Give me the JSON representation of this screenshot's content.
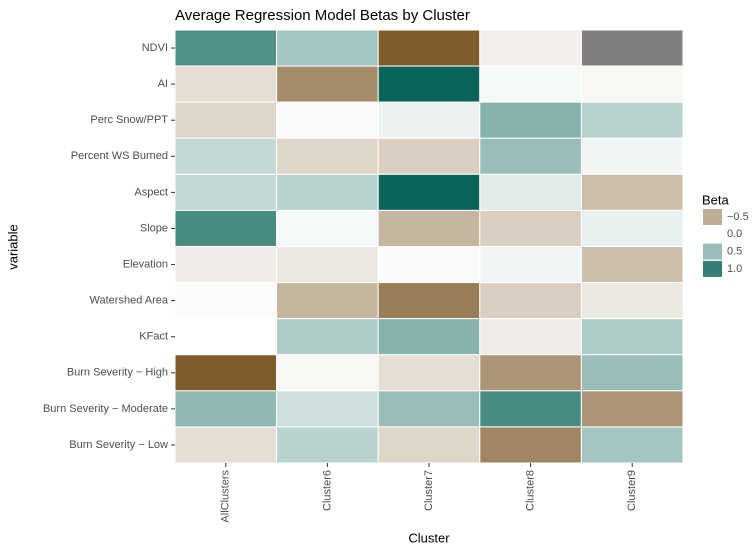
{
  "chart_data": {
    "type": "heatmap",
    "title": "Average Regression Model Betas by Cluster",
    "x_label": "Cluster",
    "y_label": "variable",
    "x_categories": [
      "AllClusters",
      "Cluster6",
      "Cluster7",
      "Cluster8",
      "Cluster9"
    ],
    "y_categories": [
      "NDVI",
      "AI",
      "Perc Snow/PPT",
      "Percent WS Burned",
      "Aspect",
      "Slope",
      "Elevation",
      "Watershed Area",
      "KFact",
      "Burn Severity − High",
      "Burn Severity − Moderate",
      "Burn Severity − Low"
    ],
    "values": [
      [
        0.85,
        0.45,
        -1.0,
        -0.1,
        null
      ],
      [
        -0.2,
        -0.7,
        1.2,
        0.05,
        -0.05
      ],
      [
        -0.25,
        -0.03,
        0.1,
        0.6,
        0.35
      ],
      [
        0.3,
        -0.25,
        -0.3,
        0.5,
        0.08
      ],
      [
        0.3,
        0.35,
        1.2,
        0.15,
        -0.4
      ],
      [
        0.9,
        0.05,
        -0.45,
        -0.3,
        0.12
      ],
      [
        -0.12,
        -0.15,
        0.03,
        0.08,
        -0.4
      ],
      [
        0.02,
        -0.45,
        -0.8,
        -0.3,
        -0.15
      ],
      [
        0.0,
        0.4,
        0.6,
        -0.12,
        0.4
      ],
      [
        -1.0,
        -0.05,
        -0.2,
        -0.65,
        0.5
      ],
      [
        0.55,
        0.25,
        0.5,
        0.9,
        -0.65
      ],
      [
        -0.2,
        0.35,
        -0.25,
        -0.75,
        0.45
      ]
    ],
    "colorscale": {
      "low": "#7f5c2c",
      "mid": "#ffffff",
      "high": "#0b6459",
      "na_color": "#7f7f7f"
    },
    "zlim": [
      -1.0,
      1.2
    ],
    "legend_title": "Beta",
    "legend_ticks": [
      {
        "value": -0.5,
        "label": "−0.5"
      },
      {
        "value": 0,
        "label": "0.0"
      },
      {
        "value": 0.5,
        "label": "0.5"
      },
      {
        "value": 1,
        "label": "1.0"
      }
    ]
  }
}
